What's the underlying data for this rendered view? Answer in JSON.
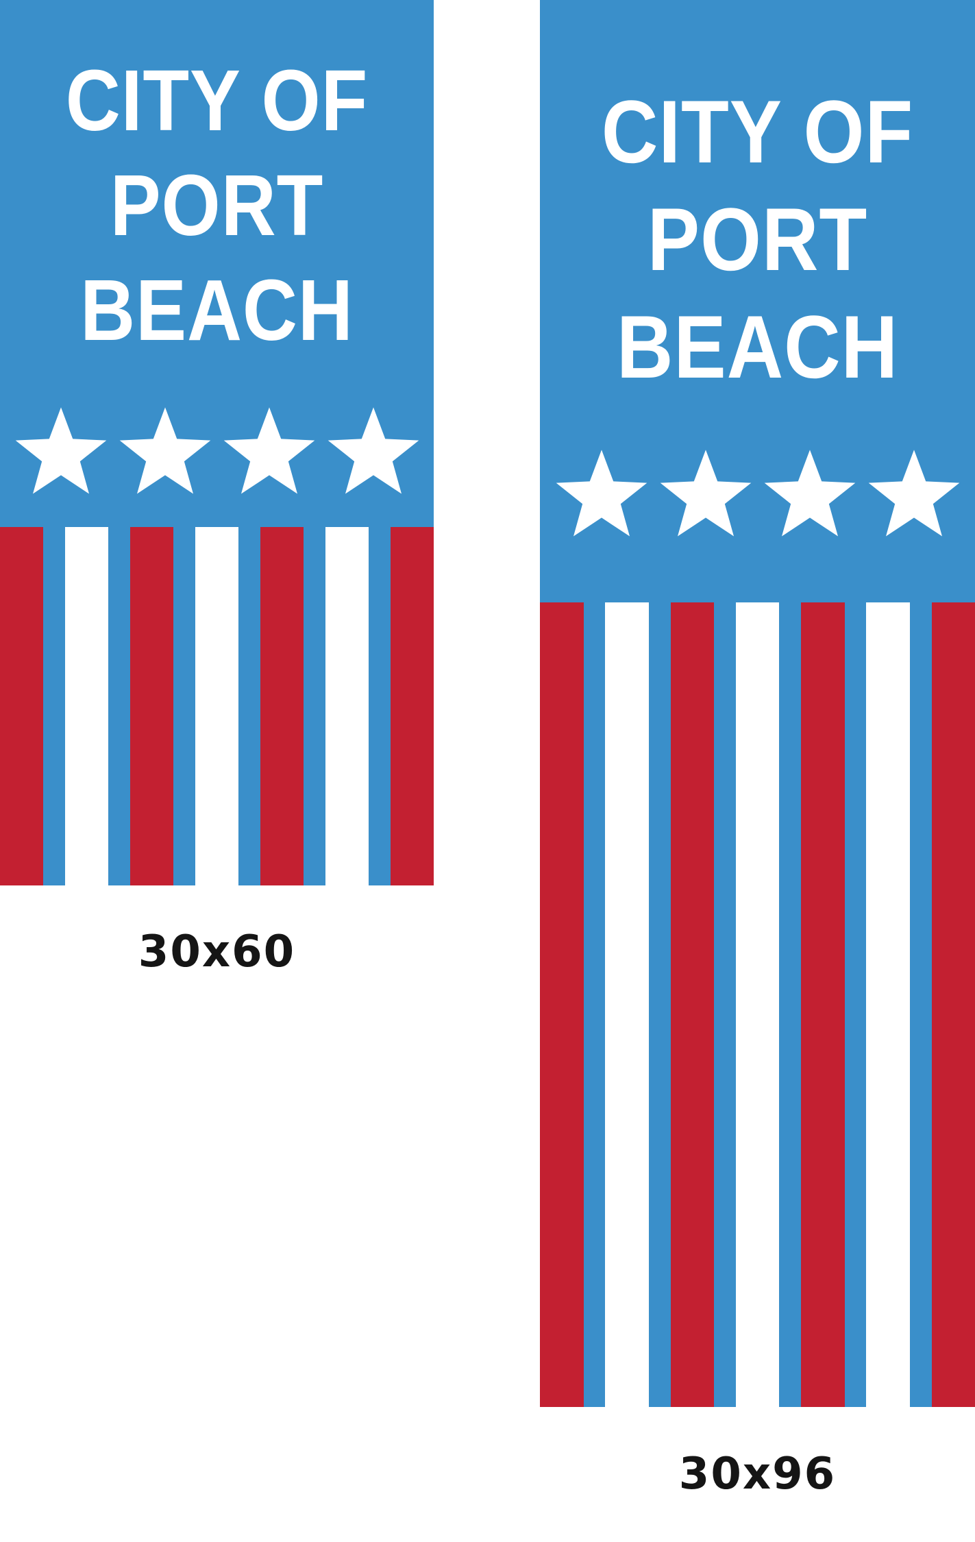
{
  "colors": {
    "blue": "#3A8FCA",
    "red": "#C32031",
    "star": "#FFFFFF",
    "label": "#151515"
  },
  "stripes": {
    "pattern": [
      "red",
      "white",
      "red",
      "white",
      "red",
      "white",
      "red"
    ]
  },
  "banners": [
    {
      "id": "30x60",
      "title_lines": [
        "CITY OF",
        "PORT",
        "BEACH"
      ],
      "star_count": 4,
      "size_label": "30x60"
    },
    {
      "id": "30x96",
      "title_lines": [
        "CITY OF",
        "PORT",
        "BEACH"
      ],
      "star_count": 4,
      "size_label": "30x96"
    }
  ]
}
